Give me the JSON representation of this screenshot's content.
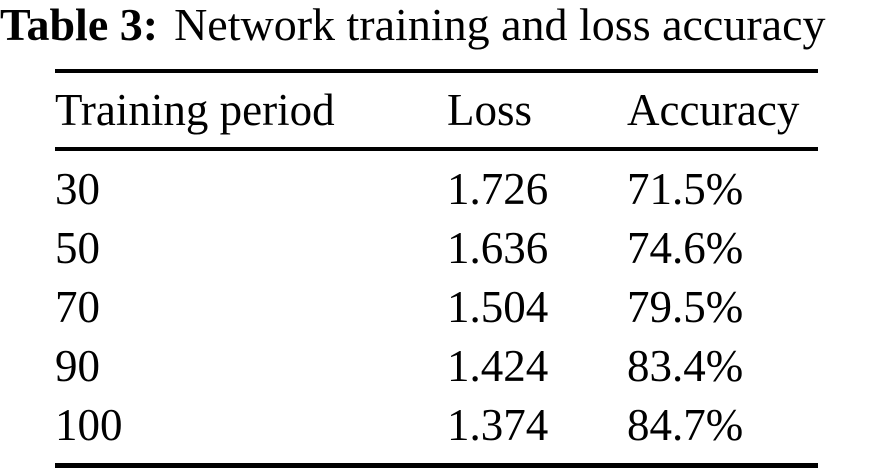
{
  "title": {
    "tag": "Table 3:",
    "caption": "Network training and loss accuracy"
  },
  "chart_data": {
    "type": "table",
    "title": "Table 3: Network training and loss accuracy",
    "columns": [
      "Training period",
      "Loss",
      "Accuracy"
    ],
    "rows": [
      [
        "30",
        "1.726",
        "71.5%"
      ],
      [
        "50",
        "1.636",
        "74.6%"
      ],
      [
        "70",
        "1.504",
        "79.5%"
      ],
      [
        "90",
        "1.424",
        "83.4%"
      ],
      [
        "100",
        "1.374",
        "84.7%"
      ]
    ]
  },
  "colors": {
    "text": "#000000",
    "background": "#ffffff",
    "rule": "#000000"
  }
}
